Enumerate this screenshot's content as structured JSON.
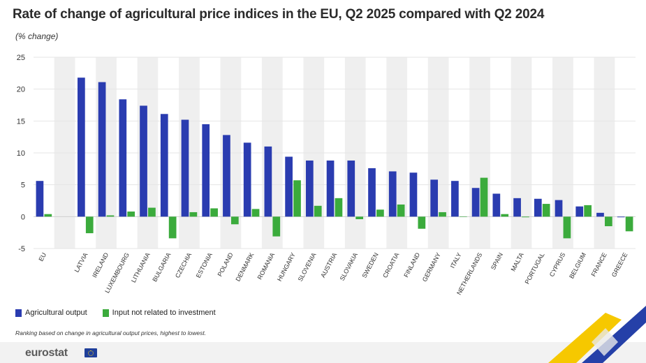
{
  "title": "Rate of change of agricultural price indices in the EU, Q2 2025 compared with Q2 2024",
  "subtitle": "(% change)",
  "legend": {
    "output": "Agricultural output",
    "input": "Input not related to investment"
  },
  "note": "Ranking based on change in agricultural output prices, highest to lowest.",
  "brand": "eurostat",
  "colors": {
    "output": "#2a3cb0",
    "input": "#3bab3c",
    "band": "#efefef",
    "accent_yellow": "#f6c800",
    "accent_blue": "#2540a8"
  },
  "icons": [
    "eu-flag-icon"
  ],
  "chart_data": {
    "type": "bar",
    "title": "Rate of change of agricultural price indices in the EU, Q2 2025 compared with Q2 2024",
    "ylabel": "",
    "xlabel": "",
    "ylim": [
      -5,
      25
    ],
    "yticks": [
      -5,
      0,
      5,
      10,
      15,
      20,
      25
    ],
    "grid": "alternating vertical bands",
    "legend_position": "bottom-left",
    "categories": [
      "EU",
      "",
      "LATVIA",
      "IRELAND",
      "LUXEMBOURG",
      "LITHUANIA",
      "BULGARIA",
      "CZECHIA",
      "ESTONIA",
      "POLAND",
      "DENMARK",
      "ROMANIA",
      "HUNGARY",
      "SLOVENIA",
      "AUSTRIA",
      "SLOVAKIA",
      "SWEDEN",
      "CROATIA",
      "FINLAND",
      "GERMANY",
      "ITALY",
      "NETHERLANDS",
      "SPAIN",
      "MALTA",
      "PORTUGAL",
      "CYPRUS",
      "BELGIUM",
      "FRANCE",
      "GREECE"
    ],
    "series": [
      {
        "name": "Agricultural output",
        "values": [
          5.6,
          null,
          21.8,
          21.1,
          18.4,
          17.4,
          16.1,
          15.2,
          14.5,
          12.8,
          11.6,
          11.0,
          9.4,
          8.8,
          8.8,
          8.8,
          7.6,
          7.1,
          6.9,
          5.8,
          5.6,
          4.5,
          3.6,
          2.9,
          2.8,
          2.6,
          1.6,
          0.6,
          -0.1
        ]
      },
      {
        "name": "Input not related to investment",
        "values": [
          0.4,
          null,
          -2.6,
          0.2,
          0.8,
          1.4,
          -3.4,
          0.7,
          1.3,
          -1.2,
          1.2,
          -3.1,
          5.7,
          1.7,
          2.9,
          -0.4,
          1.1,
          1.9,
          -1.9,
          0.7,
          0.0,
          6.1,
          0.4,
          -0.1,
          2.0,
          -3.4,
          1.8,
          -1.5,
          -2.3
        ]
      }
    ]
  }
}
